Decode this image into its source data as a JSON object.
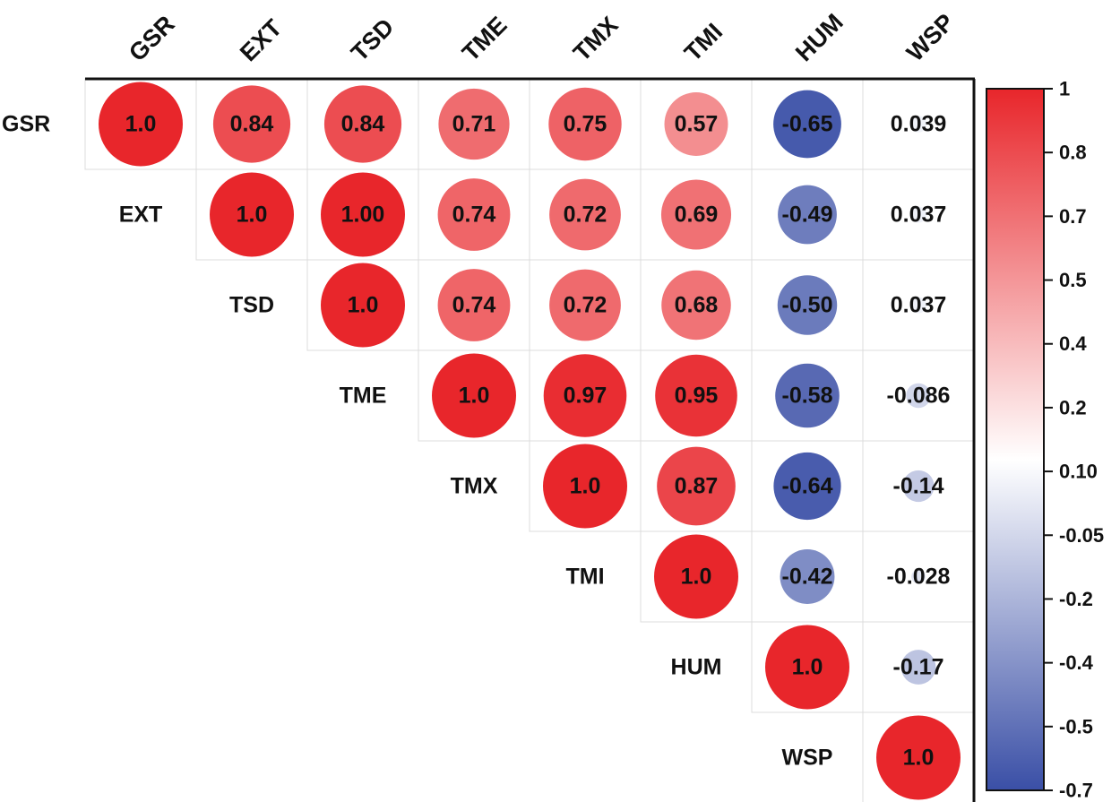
{
  "chart_data": {
    "type": "heatmap",
    "style": "upper-triangle correlation matrix with circles",
    "variables": [
      "GSR",
      "EXT",
      "TSD",
      "TME",
      "TMX",
      "TMI",
      "HUM",
      "WSP"
    ],
    "matrix": [
      [
        1.0,
        0.84,
        0.84,
        0.71,
        0.75,
        0.57,
        -0.65,
        0.039
      ],
      [
        null,
        1.0,
        1.0,
        0.74,
        0.72,
        0.69,
        -0.49,
        0.037
      ],
      [
        null,
        null,
        1.0,
        0.74,
        0.72,
        0.68,
        -0.5,
        0.037
      ],
      [
        null,
        null,
        null,
        1.0,
        0.97,
        0.95,
        -0.58,
        -0.086
      ],
      [
        null,
        null,
        null,
        null,
        1.0,
        0.87,
        -0.64,
        -0.14
      ],
      [
        null,
        null,
        null,
        null,
        null,
        1.0,
        -0.42,
        -0.028
      ],
      [
        null,
        null,
        null,
        null,
        null,
        null,
        1.0,
        -0.17
      ],
      [
        null,
        null,
        null,
        null,
        null,
        null,
        null,
        1.0
      ]
    ],
    "labels": [
      [
        "1.0",
        "0.84",
        "0.84",
        "0.71",
        "0.75",
        "0.57",
        "-0.65",
        "0.039"
      ],
      [
        null,
        "1.0",
        "1.00",
        "0.74",
        "0.72",
        "0.69",
        "-0.49",
        "0.037"
      ],
      [
        null,
        null,
        "1.0",
        "0.74",
        "0.72",
        "0.68",
        "-0.50",
        "0.037"
      ],
      [
        null,
        null,
        null,
        "1.0",
        "0.97",
        "0.95",
        "-0.58",
        "-0.086"
      ],
      [
        null,
        null,
        null,
        null,
        "1.0",
        "0.87",
        "-0.64",
        "-0.14"
      ],
      [
        null,
        null,
        null,
        null,
        null,
        "1.0",
        "-0.42",
        "-0.028"
      ],
      [
        null,
        null,
        null,
        null,
        null,
        null,
        "1.0",
        "-0.17"
      ],
      [
        null,
        null,
        null,
        null,
        null,
        null,
        null,
        "1.0"
      ]
    ],
    "colorbar": {
      "ticks": [
        "1",
        "0.8",
        "0.7",
        "0.5",
        "0.4",
        "0.2",
        "0.10",
        "-0.05",
        "-0.2",
        "-0.4",
        "-0.5",
        "-0.7"
      ],
      "range": [
        -0.7,
        1
      ],
      "low_color": "#3a4fa6",
      "mid_color": "#ffffff",
      "high_color": "#e8262b",
      "mid_value": 0.1
    },
    "title": "",
    "xlabel": "",
    "ylabel": ""
  }
}
